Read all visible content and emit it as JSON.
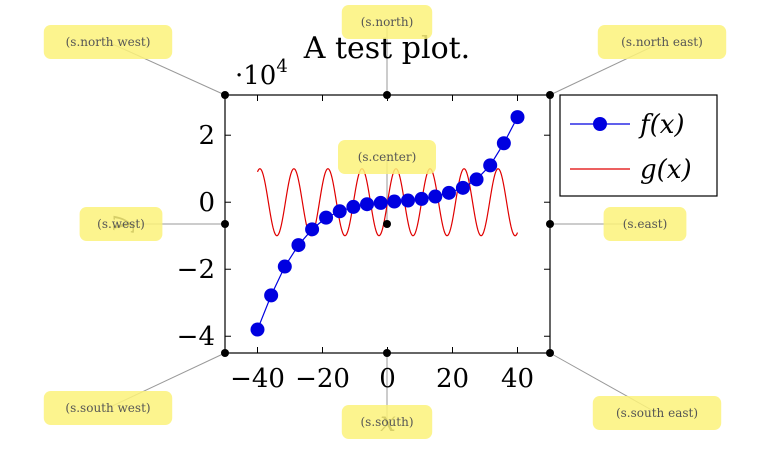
{
  "chart_data": {
    "type": "line",
    "title": "A test plot.",
    "xlabel": "x",
    "ylabel": "y",
    "y_scale_label": "·10",
    "y_scale_exp": "4",
    "xlim": [
      -50,
      50
    ],
    "ylim": [
      -45000,
      32000
    ],
    "x_ticks": [
      "−40",
      "−20",
      "0",
      "20",
      "40"
    ],
    "x_tick_values": [
      -40,
      -20,
      0,
      20,
      40
    ],
    "y_ticks": [
      "−4",
      "−2",
      "0",
      "2"
    ],
    "y_tick_values": [
      -40000,
      -20000,
      0,
      20000
    ],
    "series": [
      {
        "name": "f(x)",
        "legend": "f(x)",
        "color": "#0000e0",
        "marker": "circle",
        "x": [
          -40,
          -35.8,
          -31.6,
          -27.4,
          -23.2,
          -18.9,
          -14.7,
          -10.5,
          -6.3,
          -2.1,
          2.1,
          6.3,
          10.5,
          14.7,
          18.9,
          23.2,
          27.4,
          31.6,
          35.8,
          40
        ],
        "y": [
          -38000,
          -27800,
          -19200,
          -12800,
          -8100,
          -4600,
          -2700,
          -1400,
          -600,
          -200,
          200,
          500,
          1000,
          1700,
          2800,
          4300,
          6800,
          11000,
          17600,
          25400
        ]
      },
      {
        "name": "g(x)",
        "legend": "g(x)",
        "color": "#e00000",
        "marker": "none",
        "function": "10000*sin(0.6*x)",
        "x_range": [
          -40,
          40
        ]
      }
    ],
    "legend_position": "outer north east",
    "grid": false
  },
  "anchors": [
    {
      "key": "north_west",
      "label": "(s.north west)"
    },
    {
      "key": "north",
      "label": "(s.north)"
    },
    {
      "key": "north_east",
      "label": "(s.north east)"
    },
    {
      "key": "center",
      "label": "(s.center)"
    },
    {
      "key": "west",
      "label": "(s.west)"
    },
    {
      "key": "east",
      "label": "(s.east)"
    },
    {
      "key": "south_west",
      "label": "(s.south west)"
    },
    {
      "key": "south",
      "label": "(s.south)"
    },
    {
      "key": "south_east",
      "label": "(s.south east)"
    }
  ],
  "colors": {
    "tag_fill": "#fbf27a",
    "leader_line": "#999999"
  }
}
